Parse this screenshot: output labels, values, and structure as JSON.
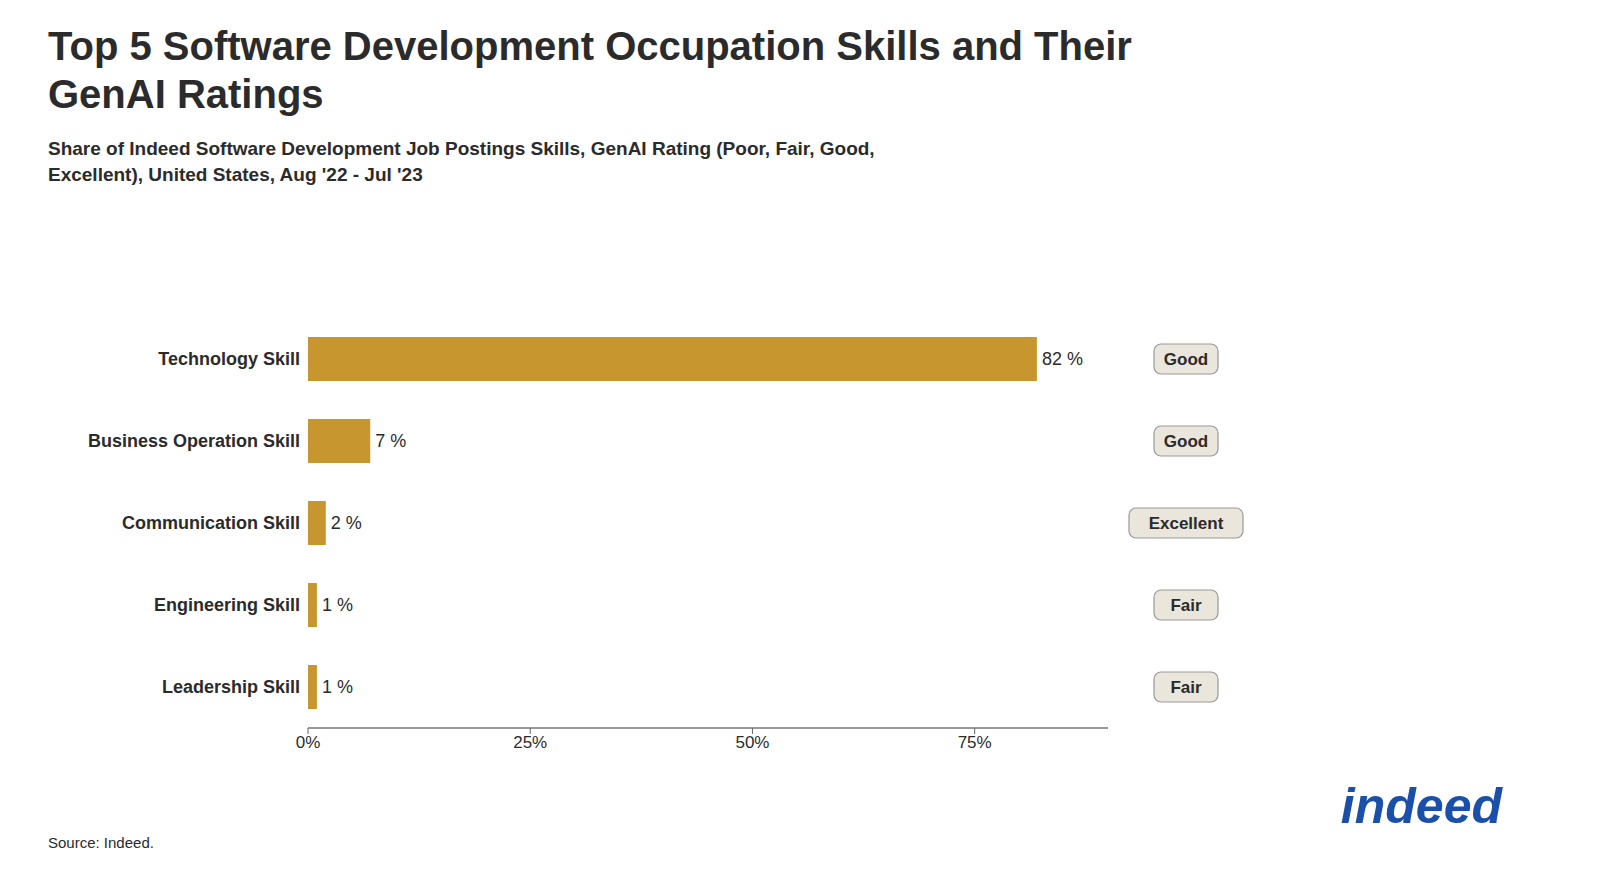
{
  "chart_data": {
    "type": "bar",
    "orientation": "horizontal",
    "title": "Top 5 Software Development Occupation Skills and Their GenAI Ratings",
    "subtitle": "Share of Indeed Software Development Job Postings Skills, GenAI Rating (Poor, Fair, Good, Excellent), United States, Aug '22 - Jul '23",
    "categories": [
      "Technology Skill",
      "Business Operation Skill",
      "Communication Skill",
      "Engineering Skill",
      "Leadership Skill"
    ],
    "values": [
      82,
      7,
      2,
      1,
      1
    ],
    "value_labels": [
      "82 %",
      "7 %",
      "2 %",
      "1 %",
      "1 %"
    ],
    "data_labels": true,
    "ratings": [
      "Good",
      "Good",
      "Excellent",
      "Fair",
      "Fair"
    ],
    "color": "#C8962E",
    "xlim": [
      0,
      90
    ],
    "xticks": [
      {
        "value": 0,
        "label": "0%"
      },
      {
        "value": 25,
        "label": "25%"
      },
      {
        "value": 50,
        "label": "50%"
      },
      {
        "value": 75,
        "label": "75%"
      }
    ],
    "grid": false,
    "annotations": [
      "Source: Indeed.",
      "indeed"
    ]
  }
}
